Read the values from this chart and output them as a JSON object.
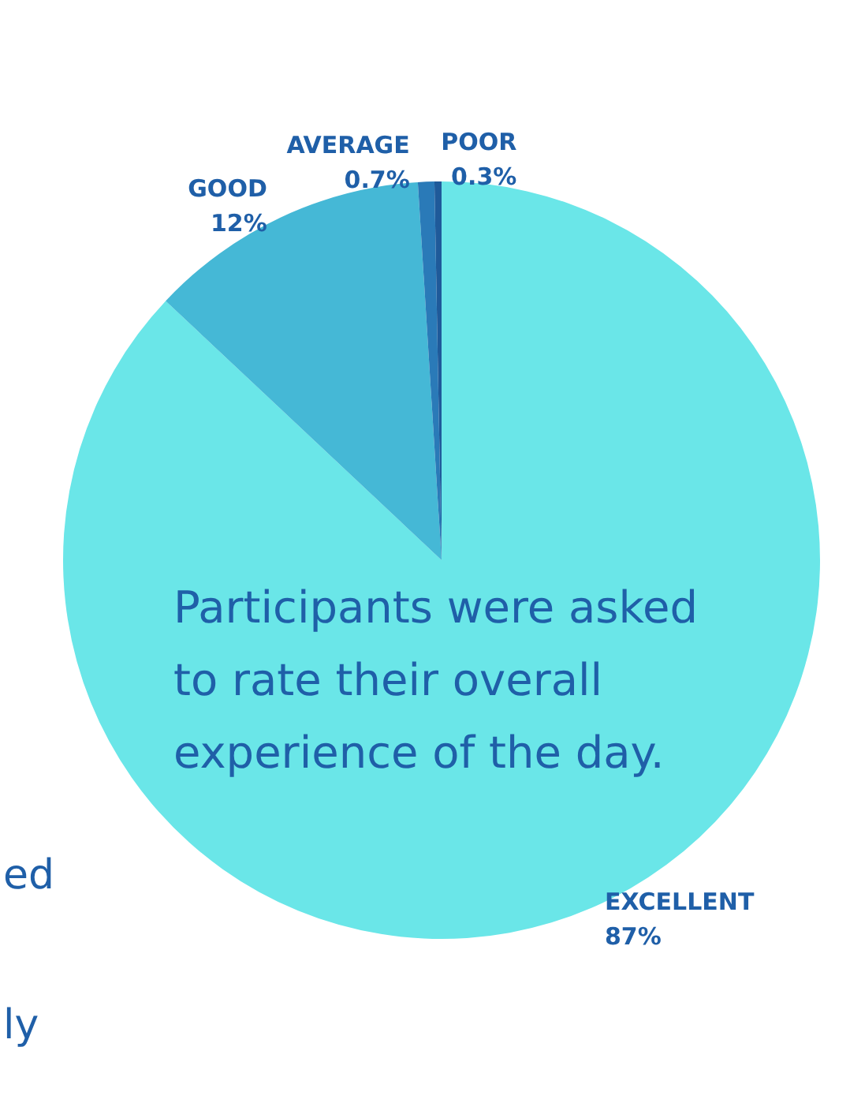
{
  "chart_data": {
    "type": "pie",
    "categories": [
      "EXCELLENT",
      "GOOD",
      "AVERAGE",
      "POOR"
    ],
    "values": [
      87,
      12,
      0.7,
      0.3
    ],
    "colors": [
      "#6ae6e8",
      "#45b8d6",
      "#2a7ab8",
      "#1f5a9a"
    ],
    "value_labels": [
      "87%",
      "12%",
      "0.7%",
      "0.3%"
    ],
    "legend": false,
    "annotations": [
      "Participants were asked to rate their overall experience of the day.",
      "ed",
      "ly"
    ]
  }
}
